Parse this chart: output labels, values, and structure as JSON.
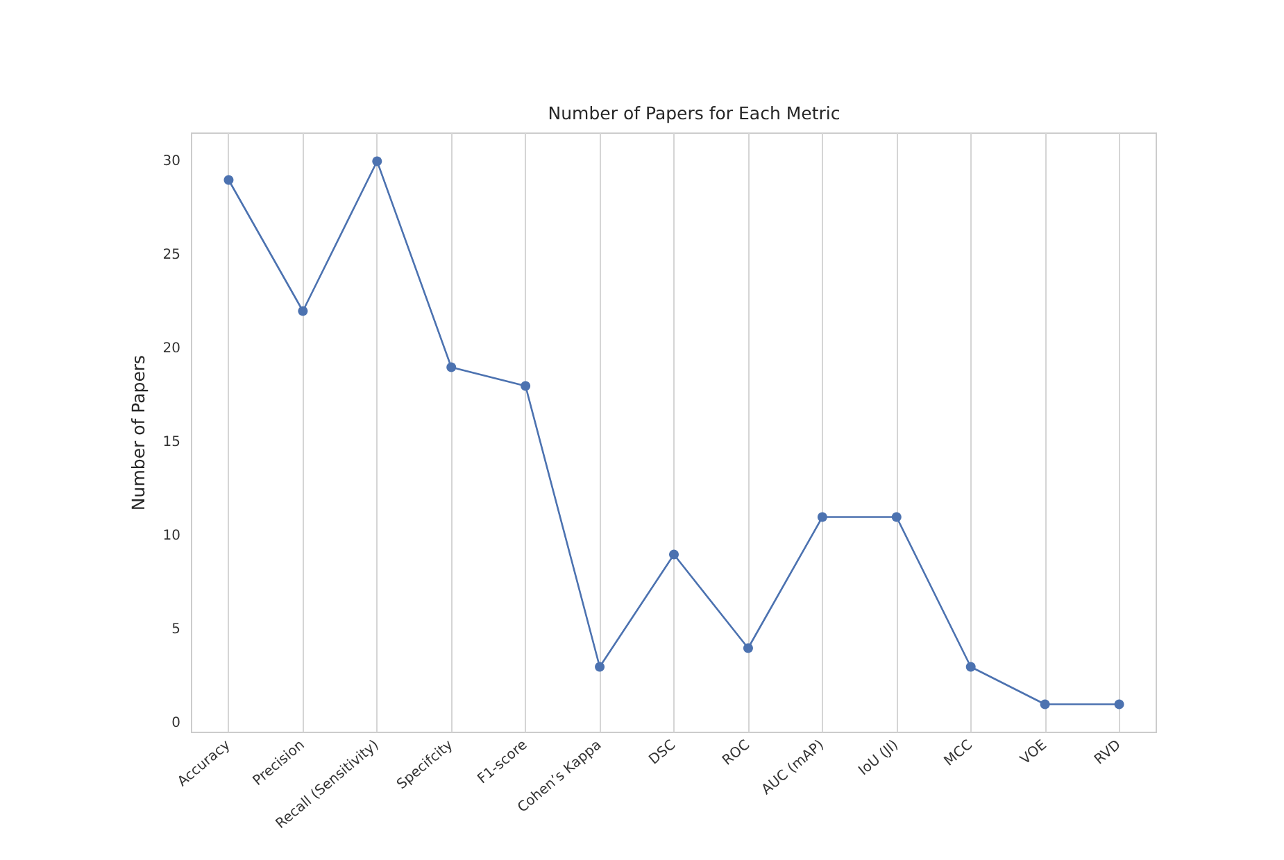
{
  "chart_data": {
    "type": "line",
    "title": "Number of Papers for Each Metric",
    "ylabel": "Number of Papers",
    "categories": [
      "Accuracy",
      "Precision",
      "Recall (Sensitivity)",
      "Specifcity",
      "F1-score",
      "Cohen’s Kappa",
      "DSC",
      "ROC",
      "AUC (mAP)",
      "IoU (JI)",
      "MCC",
      "VOE",
      "RVD"
    ],
    "series": [
      {
        "color": "#4c72b0",
        "values": [
          29,
          22,
          30,
          19,
          18,
          3,
          9,
          4,
          11,
          11,
          3,
          1,
          1
        ]
      }
    ],
    "ylim": [
      -0.5,
      31.5
    ],
    "yticks": [
      0,
      5,
      10,
      15,
      20,
      25,
      30
    ],
    "grid": "x",
    "marker": "circle",
    "line_style": "solid"
  }
}
